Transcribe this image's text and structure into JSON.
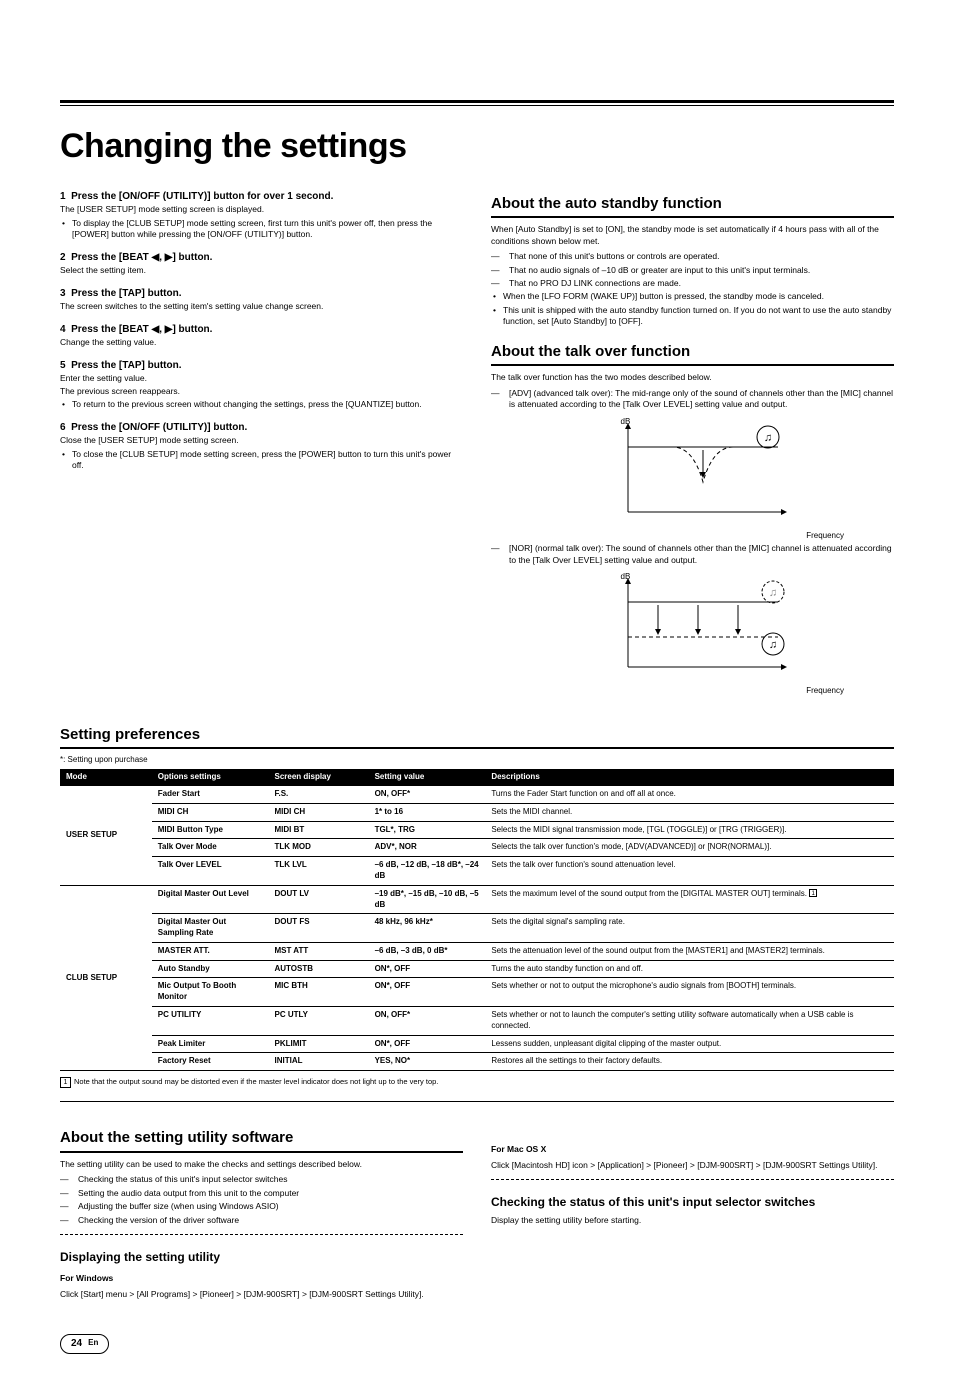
{
  "page": {
    "number": "24",
    "lang": "En"
  },
  "title": "Changing the settings",
  "steps": [
    {
      "num": "1",
      "heading": "Press the [ON/OFF (UTILITY)] button for over 1 second.",
      "sub": "The [USER SETUP] mode setting screen is displayed.",
      "bullets": [
        "To display the [CLUB SETUP] mode setting screen, first turn this unit's power off, then press the [POWER] button while pressing the [ON/OFF (UTILITY)] button."
      ]
    },
    {
      "num": "2",
      "heading": "Press the [BEAT ◀, ▶] button.",
      "sub": "Select the setting item."
    },
    {
      "num": "3",
      "heading": "Press the [TAP] button.",
      "sub": "The screen switches to the setting item's setting value change screen."
    },
    {
      "num": "4",
      "heading": "Press the [BEAT ◀, ▶] button.",
      "sub": "Change the setting value."
    },
    {
      "num": "5",
      "heading": "Press the [TAP] button.",
      "sub": "Enter the setting value.",
      "sub2": "The previous screen reappears.",
      "bullets": [
        "To return to the previous screen without changing the settings, press the [QUANTIZE] button."
      ]
    },
    {
      "num": "6",
      "heading": "Press the [ON/OFF (UTILITY)] button.",
      "sub": "Close the [USER SETUP] mode setting screen.",
      "bullets": [
        "To close the [CLUB SETUP] mode setting screen, press the [POWER] button to turn this unit's power off."
      ]
    }
  ],
  "autoStandby": {
    "heading": "About the auto standby function",
    "intro": "When [Auto Standby] is set to [ON], the standby mode is set automatically if 4 hours pass with all of the conditions shown below met.",
    "dashes": [
      "That none of this unit's buttons or controls are operated.",
      "That no audio signals of –10 dB or greater are input to this unit's input terminals.",
      "That no PRO DJ LINK connections are made."
    ],
    "bullets": [
      "When the [LFO FORM (WAKE UP)] button is pressed, the standby mode is canceled.",
      "This unit is shipped with the auto standby function turned on. If you do not want to use the auto standby function, set [Auto Standby] to [OFF]."
    ]
  },
  "talkOver": {
    "heading": "About the talk over function",
    "intro": "The talk over function has the two modes described below.",
    "adv": "[ADV] (advanced talk over): The mid-range only of the sound of channels other than the [MIC] channel is attenuated according to the [Talk Over LEVEL] setting value and output.",
    "nor": "[NOR] (normal talk over): The sound of channels other than the [MIC] channel is attenuated according to the [Talk Over LEVEL] setting value and output.",
    "axis_db": "dB",
    "axis_freq": "Frequency"
  },
  "prefs": {
    "heading": "Setting preferences",
    "note": "*: Setting upon purchase",
    "columns": [
      "Mode",
      "Options settings",
      "Screen display",
      "Setting value",
      "Descriptions"
    ],
    "groups": [
      {
        "mode": "USER SETUP",
        "rows": [
          {
            "opt": "Fader Start",
            "disp": "F.S.",
            "val": "ON, OFF*",
            "desc": "Turns the Fader Start function on and off all at once."
          },
          {
            "opt": "MIDI CH",
            "disp": "MIDI CH",
            "val": "1* to 16",
            "desc": "Sets the MIDI channel."
          },
          {
            "opt": "MIDI Button Type",
            "disp": "MIDI BT",
            "val": "TGL*, TRG",
            "desc": "Selects the MIDI signal transmission mode, [TGL (TOGGLE)] or [TRG (TRIGGER)]."
          },
          {
            "opt": "Talk Over Mode",
            "disp": "TLK MOD",
            "val": "ADV*, NOR",
            "desc": "Selects the talk over function's mode, [ADV(ADVANCED)] or [NOR(NORMAL)]."
          },
          {
            "opt": "Talk Over LEVEL",
            "disp": "TLK LVL",
            "val": "–6 dB, –12 dB, –18 dB*, –24 dB",
            "desc": "Sets the talk over function's sound attenuation level."
          }
        ]
      },
      {
        "mode": "CLUB SETUP",
        "rows": [
          {
            "opt": "Digital Master Out Level",
            "disp": "DOUT LV",
            "val": "–19 dB*, –15 dB, –10 dB, –5 dB",
            "desc": "Sets the maximum level of the sound output from the [DIGITAL MASTER OUT] terminals.",
            "foot": true
          },
          {
            "opt": "Digital Master Out Sampling Rate",
            "disp": "DOUT FS",
            "val": "48 kHz, 96 kHz*",
            "desc": "Sets the digital signal's sampling rate."
          },
          {
            "opt": "MASTER ATT.",
            "disp": "MST ATT",
            "val": "–6 dB, –3 dB, 0 dB*",
            "desc": "Sets the attenuation level of the sound output from the [MASTER1] and [MASTER2] terminals."
          },
          {
            "opt": "Auto Standby",
            "disp": "AUTOSTB",
            "val": "ON*, OFF",
            "desc": "Turns the auto standby function on and off."
          },
          {
            "opt": "Mic Output To Booth Monitor",
            "disp": "MIC BTH",
            "val": "ON*, OFF",
            "desc": "Sets whether or not to output the microphone's audio signals from [BOOTH] terminals."
          },
          {
            "opt": "PC UTILITY",
            "disp": "PC UTLY",
            "val": "ON, OFF*",
            "desc": "Sets whether or not to launch the computer's setting utility software automatically when a USB cable is connected."
          },
          {
            "opt": "Peak Limiter",
            "disp": "PKLIMIT",
            "val": "ON*, OFF",
            "desc": "Lessens sudden, unpleasant digital clipping of the master output."
          },
          {
            "opt": "Factory Reset",
            "disp": "INITIAL",
            "val": "YES, NO*",
            "desc": "Restores all the settings to their factory defaults."
          }
        ]
      }
    ],
    "footnote": "Note that the output sound may be distorted even if the master level indicator does not light up to the very top."
  },
  "utilSoft": {
    "heading": "About the setting utility software",
    "intro": "The setting utility can be used to make the checks and settings described below.",
    "dashes": [
      "Checking the status of this unit's input selector switches",
      "Setting the audio data output from this unit to the computer",
      "Adjusting the buffer size (when using Windows ASIO)",
      "Checking the version of the driver software"
    ]
  },
  "displaying": {
    "heading": "Displaying the setting utility",
    "winH": "For Windows",
    "win": "Click [Start] menu > [All Programs] > [Pioneer] > [DJM-900SRT] > [DJM-900SRT Settings Utility].",
    "macH": "For Mac OS X",
    "mac": "Click [Macintosh HD] icon > [Application] > [Pioneer] > [DJM-900SRT] > [DJM-900SRT Settings Utility]."
  },
  "checking": {
    "heading": "Checking the status of this unit's input selector switches",
    "body": "Display the setting utility before starting."
  },
  "graph": {
    "stroke": "#000000",
    "dash": "4,3"
  }
}
